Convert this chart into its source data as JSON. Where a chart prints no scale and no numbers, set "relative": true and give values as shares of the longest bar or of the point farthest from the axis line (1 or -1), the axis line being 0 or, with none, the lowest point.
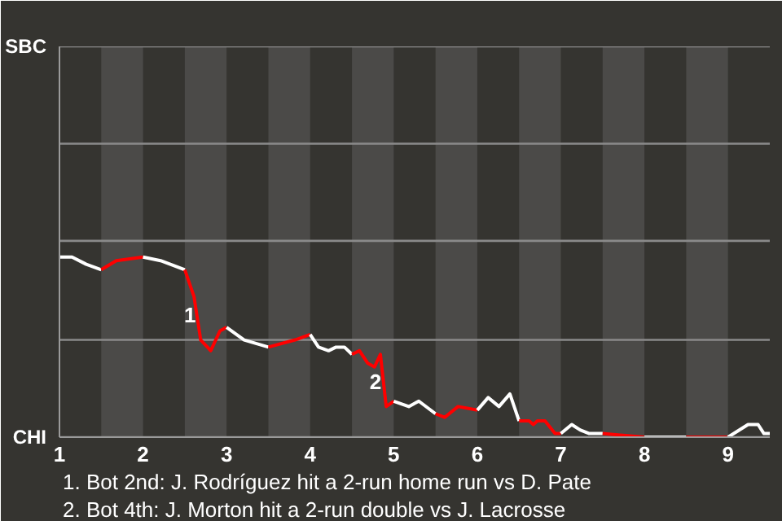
{
  "chart_data": {
    "type": "line",
    "relative": true,
    "xlim": [
      1,
      9.5
    ],
    "xticks": [
      1,
      2,
      3,
      4,
      5,
      6,
      7,
      8,
      9
    ],
    "grid": false,
    "marker": "none",
    "line_style": "solid",
    "series": [
      {
        "color": "#ffffff",
        "x": [
          1,
          1.15,
          1.32,
          1.5
        ],
        "values": [
          1,
          1,
          0.96,
          0.93
        ]
      },
      {
        "color": "#ff0000",
        "x": [
          1.5,
          1.68,
          2
        ],
        "values": [
          0.93,
          0.98,
          1
        ]
      },
      {
        "color": "#ffffff",
        "x": [
          2,
          2.21,
          2.5
        ],
        "values": [
          1,
          0.98,
          0.93
        ]
      },
      {
        "color": "#ff0000",
        "x": [
          2.5,
          2.61,
          2.69,
          2.81,
          2.92,
          3
        ],
        "values": [
          0.93,
          0.78,
          0.54,
          0.48,
          0.59,
          0.61
        ]
      },
      {
        "color": "#ffffff",
        "x": [
          3,
          3.21,
          3.5
        ],
        "values": [
          0.61,
          0.54,
          0.5
        ]
      },
      {
        "color": "#ff0000",
        "x": [
          3.5,
          3.82,
          4
        ],
        "values": [
          0.5,
          0.54,
          0.57
        ]
      },
      {
        "color": "#ffffff",
        "x": [
          4,
          4.1,
          4.22,
          4.31,
          4.41,
          4.5
        ],
        "values": [
          0.57,
          0.5,
          0.48,
          0.5,
          0.5,
          0.46
        ]
      },
      {
        "color": "#ff0000",
        "x": [
          4.5,
          4.59,
          4.69,
          4.77,
          4.84,
          4.91,
          5
        ],
        "values": [
          0.46,
          0.48,
          0.41,
          0.39,
          0.46,
          0.17,
          0.2
        ]
      },
      {
        "color": "#ffffff",
        "x": [
          5,
          5.18,
          5.3,
          5.5
        ],
        "values": [
          0.2,
          0.17,
          0.2,
          0.13
        ]
      },
      {
        "color": "#ff0000",
        "x": [
          5.5,
          5.61,
          5.77,
          6
        ],
        "values": [
          0.13,
          0.11,
          0.17,
          0.15
        ]
      },
      {
        "color": "#ffffff",
        "x": [
          6,
          6.13,
          6.26,
          6.39,
          6.5
        ],
        "values": [
          0.15,
          0.22,
          0.17,
          0.24,
          0.09
        ]
      },
      {
        "color": "#ff0000",
        "x": [
          6.5,
          6.62,
          6.67,
          6.72,
          6.81,
          6.93,
          7
        ],
        "values": [
          0.09,
          0.09,
          0.07,
          0.09,
          0.09,
          0.02,
          0.02
        ]
      },
      {
        "color": "#ffffff",
        "x": [
          7,
          7.13,
          7.23,
          7.34,
          7.5
        ],
        "values": [
          0.02,
          0.07,
          0.04,
          0.02,
          0.02
        ]
      },
      {
        "color": "#ff0000",
        "x": [
          7.5,
          8
        ],
        "values": [
          0.02,
          0
        ]
      },
      {
        "color": "#ffffff",
        "x": [
          8,
          8.5
        ],
        "values": [
          0,
          0
        ]
      },
      {
        "color": "#ff0000",
        "x": [
          8.5,
          9
        ],
        "values": [
          0,
          0
        ]
      },
      {
        "color": "#ffffff",
        "x": [
          9,
          9.24,
          9.36,
          9.43,
          9.5
        ],
        "values": [
          0,
          0.07,
          0.07,
          0.02,
          0.02
        ]
      }
    ],
    "ref_lines": [
      {
        "axis": "y",
        "value": 0,
        "label": "CHI"
      },
      {
        "axis": "y",
        "value": 0.54,
        "label": null
      },
      {
        "axis": "y",
        "value": 1.09,
        "label": null
      },
      {
        "axis": "y",
        "value": 1.63,
        "label": null
      },
      {
        "axis": "y",
        "value": 2.17,
        "label": "SBC"
      }
    ],
    "bands": [
      {
        "axis": "x",
        "from": 1.5,
        "to": 2,
        "color": "#4b4a48"
      },
      {
        "axis": "x",
        "from": 2.5,
        "to": 3,
        "color": "#4b4a48"
      },
      {
        "axis": "x",
        "from": 3.5,
        "to": 4,
        "color": "#4b4a48"
      },
      {
        "axis": "x",
        "from": 4.5,
        "to": 5,
        "color": "#4b4a48"
      },
      {
        "axis": "x",
        "from": 5.5,
        "to": 6,
        "color": "#4b4a48"
      },
      {
        "axis": "x",
        "from": 6.5,
        "to": 7,
        "color": "#4b4a48"
      },
      {
        "axis": "x",
        "from": 7.5,
        "to": 8,
        "color": "#4b4a48"
      },
      {
        "axis": "x",
        "from": 8.5,
        "to": 9,
        "color": "#4b4a48"
      }
    ],
    "annotations": [
      {
        "text": "1",
        "x": 2.73,
        "y": 0.61
      },
      {
        "text": "2",
        "x": 4.95,
        "y": 0.24
      },
      "1. Bot 2nd: J. Rodríguez hit a 2-run home run vs D. Pate",
      "2. Bot 4th: J. Morton hit a 2-run double vs J. Lacrosse"
    ]
  }
}
